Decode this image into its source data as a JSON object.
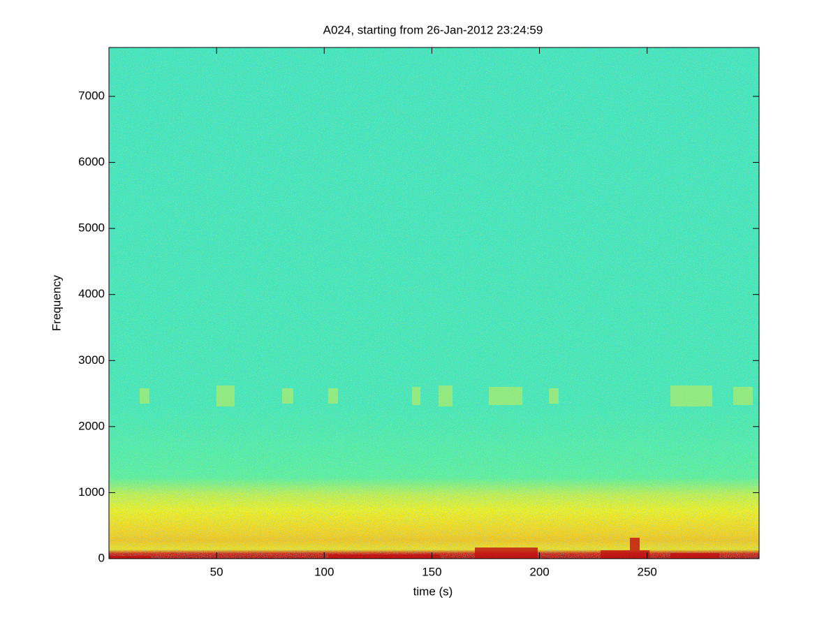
{
  "chart_data": {
    "type": "spectrogram",
    "title": "A024, starting from 26-Jan-2012 23:24:59",
    "xlabel": "time (s)",
    "ylabel": "Frequency",
    "xlim": [
      0,
      302
    ],
    "xticks": [
      50,
      100,
      150,
      200,
      250
    ],
    "ylim": [
      0,
      7740
    ],
    "yticks": [
      0,
      1000,
      2000,
      3000,
      4000,
      5000,
      6000,
      7000
    ]
  }
}
